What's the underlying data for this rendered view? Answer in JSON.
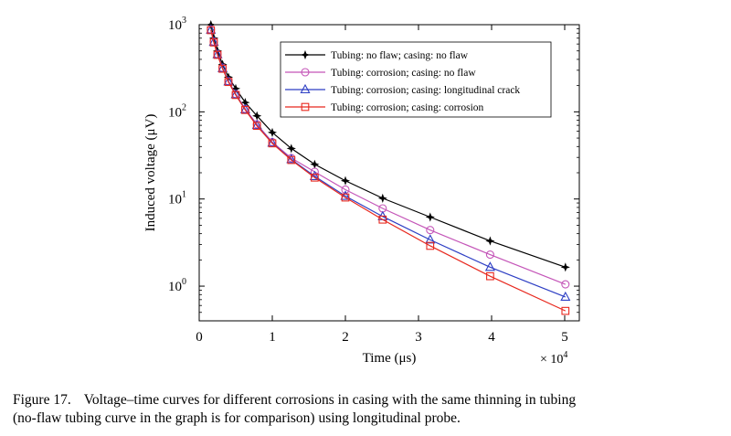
{
  "chart_data": {
    "type": "line",
    "title": "",
    "xlabel": "Time (μs)",
    "ylabel": "Induced voltage (μV)",
    "x_multiplier_label": "× 10",
    "x_multiplier_exp": "4",
    "xlim": [
      0,
      52000
    ],
    "ylim": [
      0.4,
      1000
    ],
    "yscale": "log",
    "xticks": [
      {
        "value": 0,
        "label": "0"
      },
      {
        "value": 10000,
        "label": "1"
      },
      {
        "value": 20000,
        "label": "2"
      },
      {
        "value": 30000,
        "label": "3"
      },
      {
        "value": 40000,
        "label": "4"
      },
      {
        "value": 50000,
        "label": "5"
      }
    ],
    "yticks": [
      {
        "value": 1000,
        "base": "10",
        "exp": "3"
      },
      {
        "value": 100,
        "base": "10",
        "exp": "2"
      },
      {
        "value": 10,
        "base": "10",
        "exp": "1"
      },
      {
        "value": 1,
        "base": "10",
        "exp": "0"
      }
    ],
    "grid": false,
    "legend_position": "top-right",
    "x": [
      1600,
      2000,
      2500,
      3200,
      4000,
      5000,
      6300,
      7900,
      10000,
      12600,
      15800,
      20000,
      25100,
      31600,
      39800,
      50100
    ],
    "series": [
      {
        "name": "Tubing: no flaw; casing: no flaw",
        "color": "#000000",
        "marker": "star",
        "values": [
          1000,
          700,
          500,
          350,
          250,
          185,
          128,
          90,
          58,
          38,
          25,
          16.2,
          10.2,
          6.2,
          3.3,
          1.65
        ]
      },
      {
        "name": "Tubing: corrosion; casing: no flaw",
        "color": "#c455b8",
        "marker": "circle",
        "values": [
          880,
          640,
          460,
          320,
          225,
          160,
          108,
          72,
          45,
          29.5,
          20.5,
          12.8,
          7.8,
          4.4,
          2.3,
          1.05
        ]
      },
      {
        "name": "Tubing: corrosion; casing: longitudinal crack",
        "color": "#2e3fc4",
        "marker": "triangle",
        "values": [
          870,
          630,
          455,
          315,
          222,
          158,
          106,
          70,
          44,
          28.5,
          18.2,
          10.8,
          6.3,
          3.4,
          1.65,
          0.75
        ]
      },
      {
        "name": "Tubing: corrosion; casing: corrosion",
        "color": "#e8281e",
        "marker": "square",
        "values": [
          865,
          625,
          450,
          312,
          220,
          156,
          105,
          69,
          43.5,
          28,
          17.6,
          10.4,
          5.8,
          2.9,
          1.3,
          0.52
        ]
      }
    ]
  },
  "caption": {
    "label": "Figure 17.",
    "line1": "Voltage–time curves for different corrosions in casing with the same thinning in tubing",
    "line2": "(no-flaw tubing curve in the graph is for comparison) using longitudinal probe."
  }
}
